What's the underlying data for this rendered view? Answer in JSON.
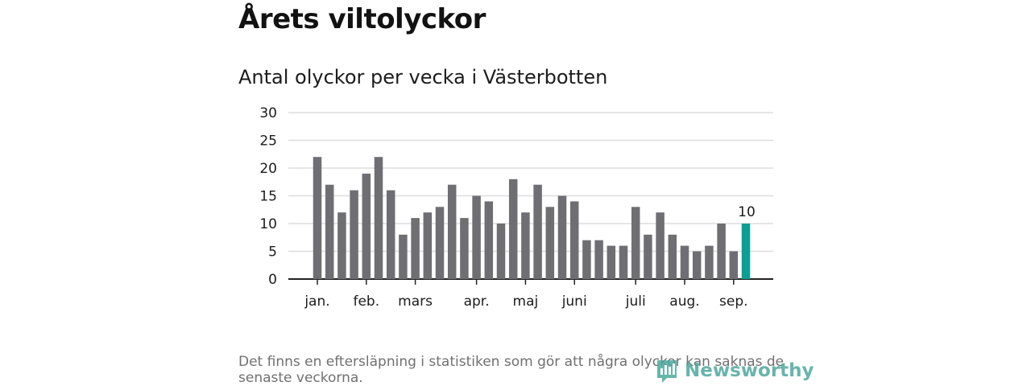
{
  "header": {
    "title": "Årets viltolyckor",
    "subtitle": "Antal olyckor per vecka i Västerbotten"
  },
  "footnote": "Det finns en eftersläpning i statistiken som gör att några olyckor kan saknas de senaste veckorna.",
  "logo": {
    "text": "Newsworthy",
    "icon": "newsworthy-logo-icon"
  },
  "colors": {
    "bar": "#6e6e73",
    "highlight": "#0b9e94",
    "grid": "#dddddd",
    "axis": "#222222"
  },
  "chart_data": {
    "type": "bar",
    "title": "Antal olyckor per vecka i Västerbotten",
    "xlabel": "",
    "ylabel": "",
    "ylim": [
      0,
      30
    ],
    "yticks": [
      0,
      5,
      10,
      15,
      20,
      25,
      30
    ],
    "grid": true,
    "legend": "none",
    "values": [
      22,
      17,
      12,
      16,
      19,
      22,
      16,
      8,
      11,
      12,
      13,
      17,
      11,
      15,
      14,
      10,
      18,
      12,
      17,
      13,
      15,
      14,
      7,
      7,
      6,
      6,
      13,
      8,
      12,
      8,
      6,
      5,
      6,
      10,
      5,
      10
    ],
    "highlight_last": true,
    "last_value_label": "10",
    "month_ticks": [
      {
        "label": "jan.",
        "bar_index": 0
      },
      {
        "label": "feb.",
        "bar_index": 4
      },
      {
        "label": "mars",
        "bar_index": 8
      },
      {
        "label": "apr.",
        "bar_index": 13
      },
      {
        "label": "maj",
        "bar_index": 17
      },
      {
        "label": "juni",
        "bar_index": 21
      },
      {
        "label": "juli",
        "bar_index": 26
      },
      {
        "label": "aug.",
        "bar_index": 30
      },
      {
        "label": "sep.",
        "bar_index": 34
      }
    ]
  }
}
